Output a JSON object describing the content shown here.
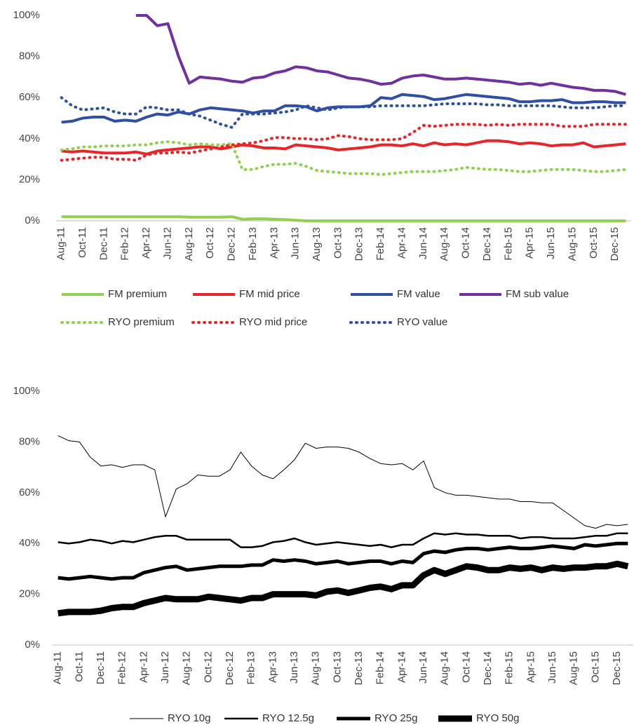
{
  "chart_data": [
    {
      "type": "line",
      "categories": [
        "Aug-11",
        null,
        "Oct-11",
        null,
        "Dec-11",
        null,
        "Feb-12",
        null,
        "Apr-12",
        null,
        "Jun-12",
        null,
        "Aug-12",
        null,
        "Oct-12",
        null,
        "Dec-12",
        null,
        "Feb-13",
        null,
        "Apr-13",
        null,
        "Jun-13",
        null,
        "Aug-13",
        null,
        "Oct-13",
        null,
        "Dec-13",
        null,
        "Feb-14",
        null,
        "Apr-14",
        null,
        "Jun-14",
        null,
        "Aug-14",
        null,
        "Oct-14",
        null,
        "Dec-14",
        null,
        "Feb-15",
        null,
        "Apr-15",
        null,
        "Jun-15",
        null,
        "Aug-15",
        null,
        "Oct-15",
        null,
        "Dec-15",
        null
      ],
      "ylim": [
        0,
        100
      ],
      "yticks": [
        {
          "value": 0,
          "label": "0%"
        },
        {
          "value": 20,
          "label": "20%"
        },
        {
          "value": 40,
          "label": "40%"
        },
        {
          "value": 60,
          "label": "60%"
        },
        {
          "value": 80,
          "label": "80%"
        },
        {
          "value": 100,
          "label": "100%"
        }
      ],
      "grid": false,
      "series": [
        {
          "name": "FM premium",
          "color": "#92d050",
          "line_width": 4,
          "dash": "solid",
          "values": [
            2,
            2,
            2,
            2,
            2,
            2,
            2,
            2,
            2,
            2,
            2,
            2,
            1.8,
            1.8,
            1.8,
            1.8,
            2,
            0.8,
            1,
            1,
            0.8,
            0.6,
            0.3,
            0,
            0,
            0,
            0,
            0,
            0,
            0,
            0,
            0,
            0,
            0,
            0,
            0,
            0,
            0,
            0,
            0,
            0,
            0,
            0,
            0,
            0,
            0,
            0,
            0,
            0,
            0,
            0,
            0,
            0,
            0
          ]
        },
        {
          "name": "FM mid price",
          "color": "#e8262a",
          "line_width": 4,
          "dash": "solid",
          "values": [
            34,
            33.5,
            34,
            33.5,
            33,
            33,
            33,
            33.5,
            32.5,
            34,
            34.5,
            35,
            35.5,
            36,
            36,
            35,
            36,
            37,
            36.5,
            35.5,
            35.5,
            35,
            37,
            36.5,
            36,
            35.5,
            34.5,
            35,
            35.5,
            36,
            37,
            37,
            36.5,
            37.5,
            36.5,
            38,
            37,
            37.5,
            37,
            38,
            39,
            39,
            38.5,
            37.5,
            38,
            37.5,
            36.5,
            37,
            37,
            38,
            36,
            36.5,
            37,
            37.5
          ]
        },
        {
          "name": "FM value",
          "color": "#2e4fa3",
          "line_width": 4,
          "dash": "solid",
          "values": [
            48,
            48.5,
            50,
            50.5,
            50.5,
            48.5,
            49,
            48.5,
            50.5,
            52,
            51.5,
            53,
            52,
            54,
            55,
            54.5,
            54,
            53.5,
            52.5,
            53.5,
            53.5,
            56,
            56,
            55.5,
            53.5,
            55,
            55.5,
            55.5,
            55.5,
            56,
            60,
            59.5,
            61.5,
            61,
            60.5,
            59,
            59.5,
            60.5,
            61.5,
            61,
            60.5,
            60,
            59.5,
            58,
            58,
            58.5,
            58.5,
            59,
            57.5,
            57.5,
            58,
            58,
            57.5,
            57.5
          ]
        },
        {
          "name": "FM sub value",
          "color": "#7030a0",
          "line_width": 4,
          "dash": "solid",
          "values": [
            null,
            null,
            null,
            null,
            null,
            null,
            null,
            100,
            100,
            95,
            96,
            80,
            67,
            70,
            69.5,
            69,
            68,
            67.5,
            69.5,
            70,
            72,
            73,
            75,
            74.5,
            73,
            72.5,
            71,
            69.5,
            69,
            68,
            66.5,
            67,
            69.5,
            70.5,
            71,
            70,
            69,
            69,
            69.5,
            69,
            68.5,
            68,
            67.5,
            66.5,
            67,
            66,
            67,
            66,
            65,
            64.5,
            63.5,
            63.5,
            63,
            61.5
          ]
        },
        {
          "name": "RYO premium",
          "color": "#92d050",
          "line_width": 4,
          "dash": "dotted",
          "values": [
            34.5,
            35,
            36,
            36,
            36.5,
            36.5,
            36.5,
            37,
            37,
            38,
            38.5,
            38,
            37,
            37.5,
            37,
            37,
            37.5,
            25,
            25,
            26.5,
            27.5,
            27.5,
            28,
            26.5,
            24.5,
            24,
            23.5,
            23,
            23,
            23,
            22.5,
            23,
            23.5,
            24,
            24,
            24,
            24.5,
            25,
            26,
            25.5,
            25,
            25,
            24.5,
            24,
            24,
            24.5,
            25,
            25,
            25,
            24.5,
            24,
            24,
            24.5,
            25
          ]
        },
        {
          "name": "RYO mid price",
          "color": "#e8262a",
          "line_width": 4,
          "dash": "dotted",
          "values": [
            29.5,
            30,
            30.5,
            31,
            31,
            30,
            30,
            29.5,
            32,
            33,
            33,
            33.5,
            33,
            34,
            35,
            36,
            37,
            37.5,
            38,
            39,
            40.5,
            40.5,
            40,
            40,
            39.5,
            40,
            41.5,
            41,
            40,
            39.5,
            39.5,
            39.5,
            40,
            43,
            46.5,
            46,
            46.5,
            47,
            47,
            47,
            46.5,
            47,
            46.5,
            47,
            47,
            47,
            47,
            46,
            46,
            46,
            47,
            47,
            47,
            47
          ]
        },
        {
          "name": "RYO value",
          "color": "#2e4fa3",
          "line_width": 4,
          "dash": "dotted",
          "values": [
            60,
            56,
            54,
            54.5,
            55,
            53,
            52,
            52,
            55.5,
            55,
            54,
            54,
            52,
            51,
            49,
            47,
            45.5,
            52,
            52,
            52,
            52.5,
            53,
            54,
            56,
            55,
            54,
            55,
            55.5,
            55.5,
            55.5,
            56,
            56,
            56,
            56,
            56,
            56.5,
            57,
            57,
            57,
            57,
            56.5,
            56.5,
            56,
            56,
            56,
            56,
            56,
            55.5,
            55,
            55,
            55,
            55.5,
            56,
            56
          ]
        }
      ]
    },
    {
      "type": "line",
      "categories": [
        "Aug-11",
        null,
        "Oct-11",
        null,
        "Dec-11",
        null,
        "Feb-12",
        null,
        "Apr-12",
        null,
        "Jun-12",
        null,
        "Aug-12",
        null,
        "Oct-12",
        null,
        "Dec-12",
        null,
        "Feb-13",
        null,
        "Apr-13",
        null,
        "Jun-13",
        null,
        "Aug-13",
        null,
        "Oct-13",
        null,
        "Dec-13",
        null,
        "Feb-14",
        null,
        "Apr-14",
        null,
        "Jun-14",
        null,
        "Aug-14",
        null,
        "Oct-14",
        null,
        "Dec-14",
        null,
        "Feb-15",
        null,
        "Apr-15",
        null,
        "Jun-15",
        null,
        "Aug-15",
        null,
        "Oct-15",
        null,
        "Dec-15",
        null
      ],
      "ylim": [
        0,
        100
      ],
      "yticks": [
        {
          "value": 0,
          "label": "0%"
        },
        {
          "value": 20,
          "label": "20%"
        },
        {
          "value": 40,
          "label": "40%"
        },
        {
          "value": 60,
          "label": "60%"
        },
        {
          "value": 80,
          "label": "80%"
        },
        {
          "value": 100,
          "label": "100%"
        }
      ],
      "grid": false,
      "series": [
        {
          "name": "RYO 10g",
          "color": "#000000",
          "line_width": 1,
          "dash": "solid",
          "values": [
            82.5,
            80.5,
            80,
            74,
            70.5,
            71,
            70,
            71,
            71,
            69,
            50.5,
            61.5,
            63.5,
            67,
            66.5,
            66.5,
            69,
            76,
            70.5,
            67,
            65.5,
            69,
            73,
            79.5,
            77.5,
            78,
            78,
            77.5,
            76,
            73.5,
            71.5,
            71,
            71.5,
            69,
            72.5,
            62,
            60,
            59,
            59,
            58.5,
            58,
            57.5,
            57.5,
            56.5,
            56.5,
            56,
            56,
            53,
            50,
            47,
            46,
            47.5,
            47,
            47.5
          ]
        },
        {
          "name": "RYO 12.5g",
          "color": "#000000",
          "line_width": 2.5,
          "dash": "solid",
          "values": [
            40.5,
            40,
            40.5,
            41.5,
            41,
            40,
            41,
            40.5,
            41.5,
            42.5,
            43,
            43,
            41.5,
            41.5,
            41.5,
            41.5,
            41.5,
            38.5,
            38.5,
            39,
            40.5,
            41,
            42,
            40.5,
            39.5,
            40,
            40.5,
            40,
            39.5,
            39,
            39.5,
            38.5,
            39.5,
            39.5,
            42,
            44,
            43.5,
            44,
            43.5,
            43.5,
            43,
            43,
            43,
            42,
            42.5,
            42.5,
            42,
            42,
            42,
            42.5,
            43,
            43,
            44,
            44
          ]
        },
        {
          "name": "RYO 25g",
          "color": "#000000",
          "line_width": 5,
          "dash": "solid",
          "values": [
            26.5,
            26,
            26.5,
            27,
            26.5,
            26,
            26.5,
            26.5,
            28.5,
            29.5,
            30.5,
            31,
            29.5,
            30,
            30.5,
            31,
            31,
            31,
            31.5,
            31.5,
            33.5,
            33,
            33.5,
            33,
            32,
            32.5,
            33,
            32,
            32.5,
            33,
            33,
            32,
            33,
            32.5,
            36,
            37,
            36.5,
            37.5,
            38,
            38,
            37.5,
            38,
            38.5,
            38,
            38,
            38.5,
            39,
            38.5,
            38,
            39.5,
            39,
            39.5,
            40,
            40
          ]
        },
        {
          "name": "RYO 50g",
          "color": "#000000",
          "line_width": 9,
          "dash": "solid",
          "values": [
            12.5,
            13,
            13,
            13,
            13.5,
            14.5,
            15,
            15,
            16.5,
            17.5,
            18.5,
            18,
            18,
            18,
            19,
            18.5,
            18,
            17.5,
            18.5,
            18.5,
            20,
            20,
            20,
            20,
            19.5,
            21,
            21.5,
            20.5,
            21.5,
            22.5,
            23,
            22,
            23.5,
            23.5,
            27.5,
            29.5,
            28,
            29.5,
            31,
            30.5,
            29.5,
            29.5,
            30.5,
            30,
            30.5,
            29.5,
            30.5,
            30,
            30.5,
            30.5,
            31,
            31,
            32,
            31
          ]
        }
      ]
    }
  ]
}
